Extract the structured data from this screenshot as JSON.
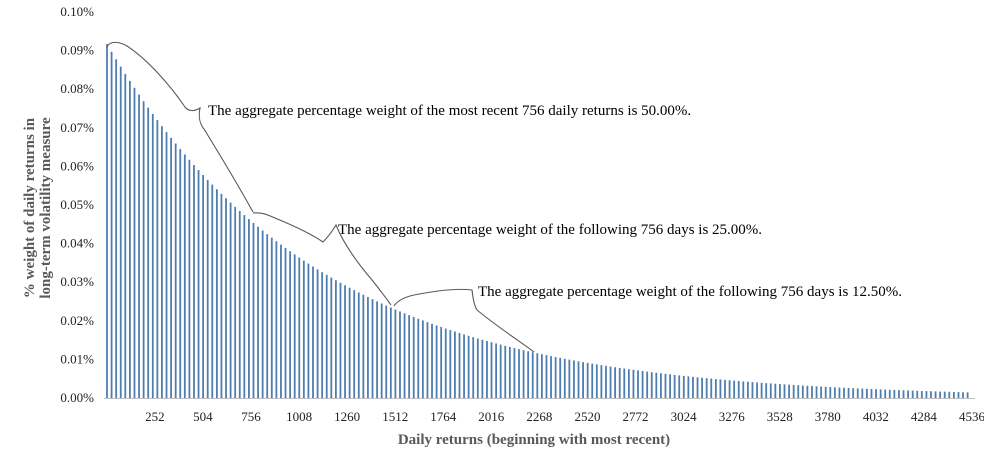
{
  "chart_data": {
    "type": "bar",
    "title": "",
    "xlabel": "Daily returns (beginning with most recent)",
    "ylabel_lines": [
      "% weight of daily returns in",
      "long-term volatility measure"
    ],
    "bar_color": "#4f7db0",
    "x_range": [
      1,
      4536
    ],
    "x_ticks": [
      "252",
      "504",
      "756",
      "1008",
      "1260",
      "1512",
      "1764",
      "2016",
      "2268",
      "2520",
      "2772",
      "3024",
      "3276",
      "3528",
      "3780",
      "4032",
      "4284",
      "4536"
    ],
    "y_ticks": [
      "0.00%",
      "0.01%",
      "0.02%",
      "0.03%",
      "0.04%",
      "0.05%",
      "0.06%",
      "0.07%",
      "0.08%",
      "0.09%",
      "0.10%"
    ],
    "ylim": [
      0,
      0.1
    ],
    "ylim_unit": "percent",
    "grid": false,
    "legend": "none",
    "series": [
      {
        "start_value_pct": 0.0917,
        "half_life_days": 756,
        "samples": [
          {
            "x": 1,
            "y": 0.0917
          },
          {
            "x": 756,
            "y": 0.0458
          },
          {
            "x": 1512,
            "y": 0.0229
          },
          {
            "x": 2268,
            "y": 0.0115
          },
          {
            "x": 3024,
            "y": 0.0057
          },
          {
            "x": 3780,
            "y": 0.0029
          },
          {
            "x": 4536,
            "y": 0.0014
          }
        ]
      }
    ],
    "annotations": [
      {
        "text": "The aggregate percentage weight of the most recent 756 daily returns is 50.00%.",
        "from_x": 1,
        "to_x": 756
      },
      {
        "text": "The aggregate percentage weight of the following 756 days is 25.00%.",
        "from_x": 756,
        "to_x": 1512
      },
      {
        "text": "The aggregate percentage weight of the following 756 days is 12.50%.",
        "from_x": 1512,
        "to_x": 2268
      }
    ]
  }
}
